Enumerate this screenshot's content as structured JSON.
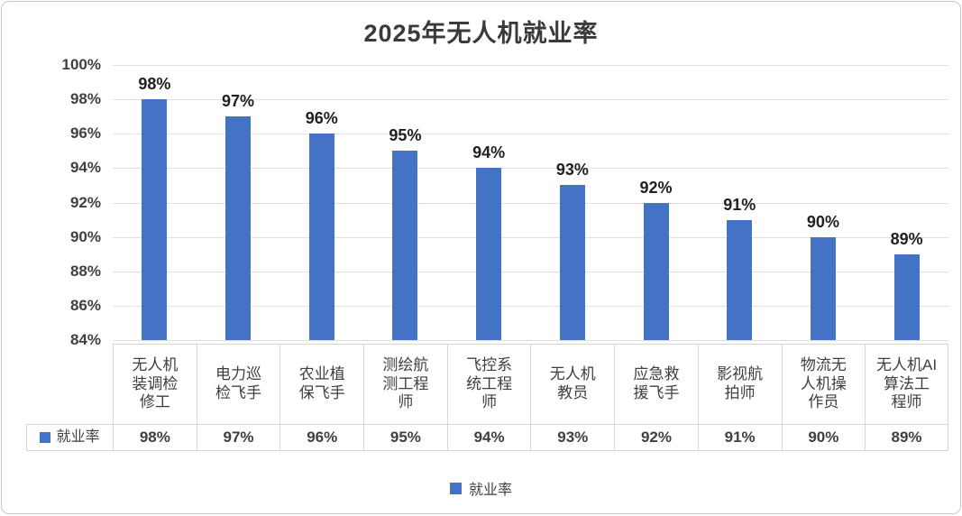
{
  "chart_data": {
    "type": "bar",
    "title": "2025年无人机就业率",
    "legend": "就业率",
    "series_name": "就业率",
    "categories": [
      "无人机\n装调检\n修工",
      "电力巡\n检飞手",
      "农业植\n保飞手",
      "测绘航\n测工程\n师",
      "飞控系\n统工程\n师",
      "无人机\n教员",
      "应急救\n援飞手",
      "影视航\n拍师",
      "物流无\n人机操\n作员",
      "无人机AI\n算法工\n程师"
    ],
    "values": [
      98,
      97,
      96,
      95,
      94,
      93,
      92,
      91,
      90,
      89
    ],
    "value_labels": [
      "98%",
      "97%",
      "96%",
      "95%",
      "94%",
      "93%",
      "92%",
      "91%",
      "90%",
      "89%"
    ],
    "y_ticks": [
      "100%",
      "98%",
      "96%",
      "94%",
      "92%",
      "90%",
      "88%",
      "86%",
      "84%"
    ],
    "ylim": [
      84,
      100
    ],
    "y_step": 2,
    "grid": true,
    "legend_position": "bottom",
    "bar_color": "#4472C4",
    "gridline_color": "#e0e0e0",
    "data_table_shown": true
  }
}
